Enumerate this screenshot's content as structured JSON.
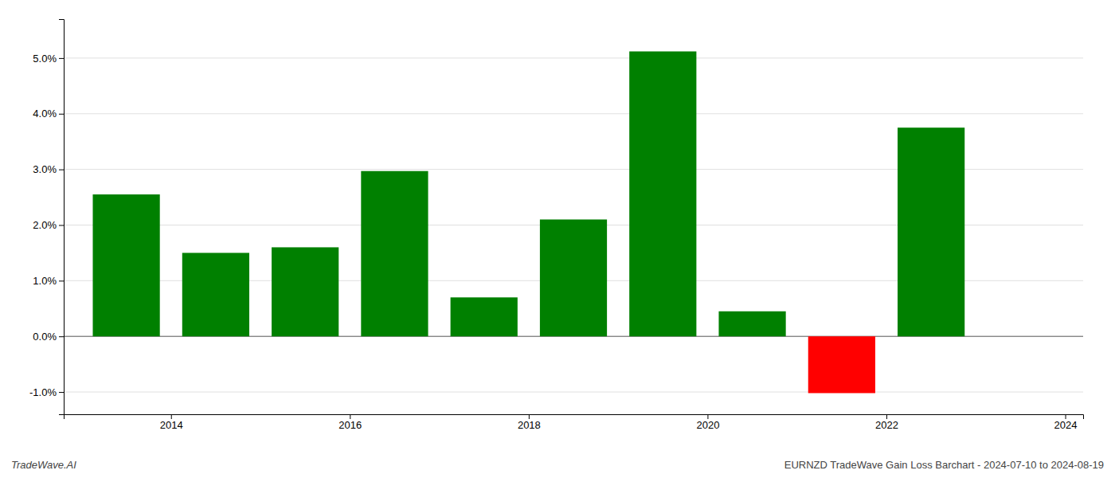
{
  "chart_data": {
    "type": "bar",
    "x": [
      2013.5,
      2014.5,
      2015.5,
      2016.5,
      2017.5,
      2018.5,
      2019.5,
      2020.5,
      2021.5,
      2022.5
    ],
    "values": [
      2.55,
      1.5,
      1.6,
      2.97,
      0.7,
      2.1,
      5.12,
      0.45,
      -1.02,
      3.75
    ],
    "colors": [
      "#008000",
      "#008000",
      "#008000",
      "#008000",
      "#008000",
      "#008000",
      "#008000",
      "#008000",
      "#ff0000",
      "#008000"
    ],
    "xlim": [
      2012.8,
      2024.2
    ],
    "xticks": [
      2014,
      2016,
      2018,
      2020,
      2022,
      2024
    ],
    "ylim": [
      -1.4,
      5.7
    ],
    "yticks": [
      {
        "value": -1.0,
        "label": "-1.0%"
      },
      {
        "value": 0.0,
        "label": "0.0%"
      },
      {
        "value": 1.0,
        "label": "1.0%"
      },
      {
        "value": 2.0,
        "label": "2.0%"
      },
      {
        "value": 3.0,
        "label": "3.0%"
      },
      {
        "value": 4.0,
        "label": "4.0%"
      },
      {
        "value": 5.0,
        "label": "5.0%"
      }
    ],
    "grid": true,
    "annotations": [
      "TradeWave.AI",
      "EURNZD TradeWave Gain Loss Barchart - 2024-07-10 to 2024-08-19"
    ]
  }
}
